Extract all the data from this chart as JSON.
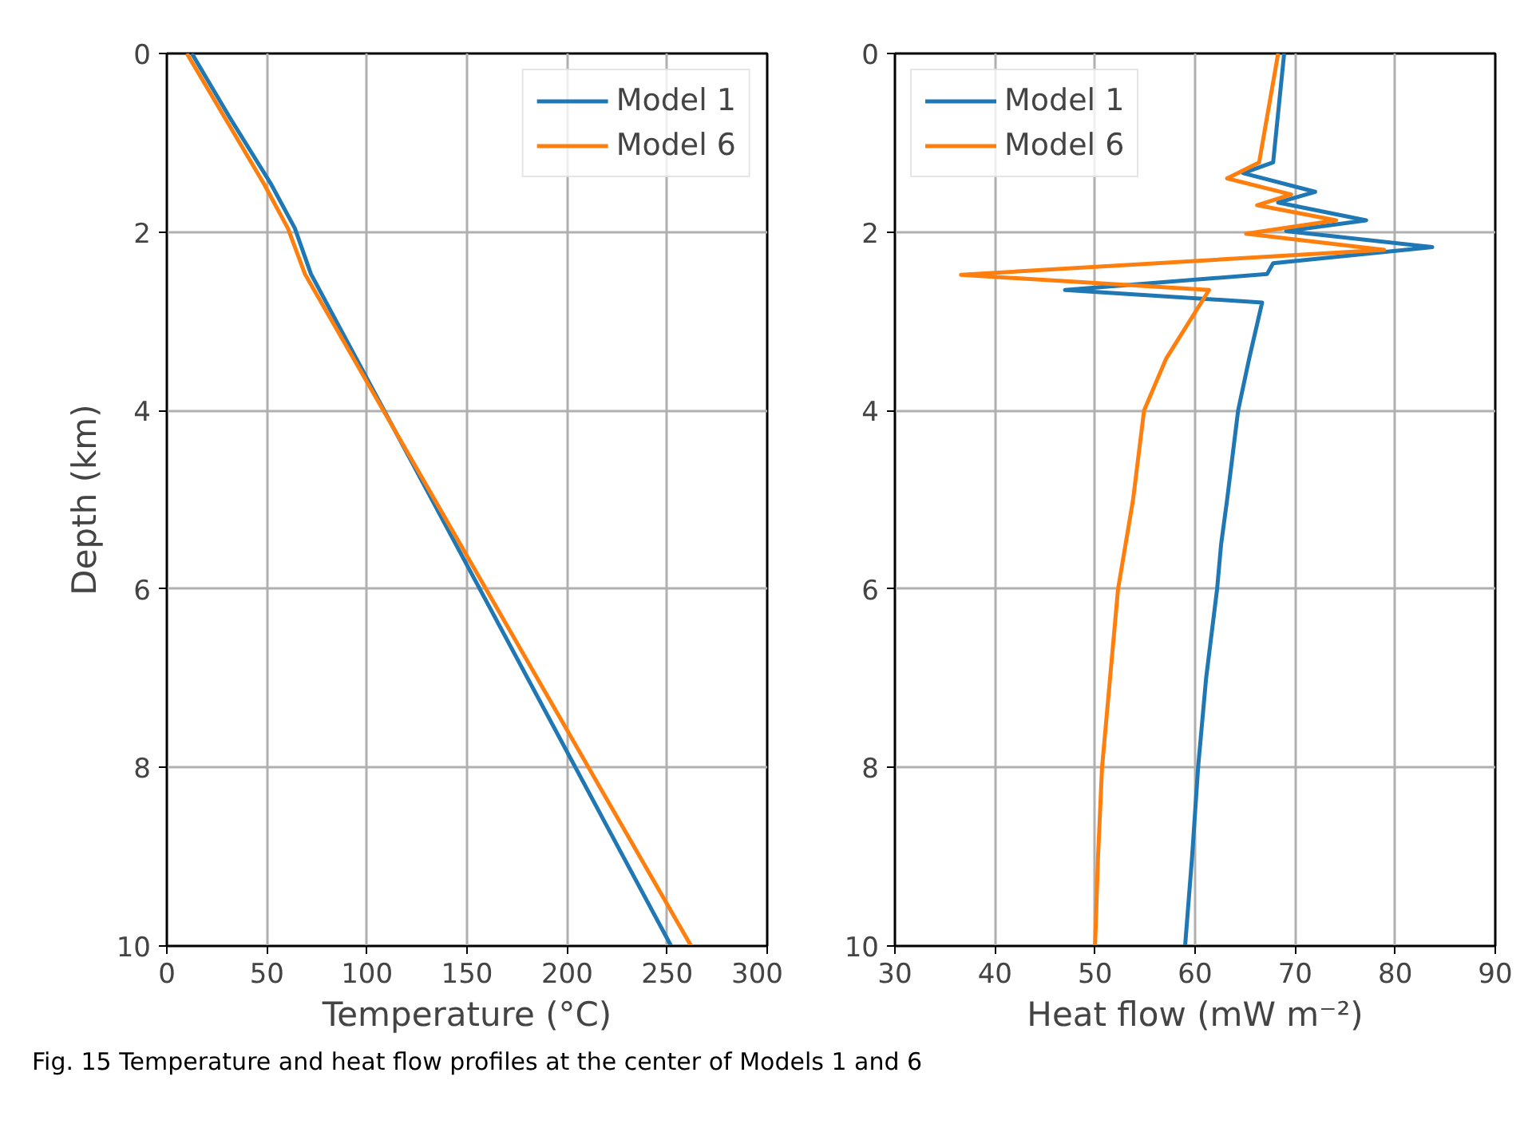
{
  "chart_data": [
    {
      "type": "line",
      "xlabel": "Temperature (°C)",
      "ylabel": "Depth (km)",
      "xlim": [
        0,
        300
      ],
      "ylim": [
        10,
        0
      ],
      "xticks": [
        0,
        50,
        100,
        150,
        200,
        250,
        300
      ],
      "yticks": [
        0,
        2,
        4,
        6,
        8,
        10
      ],
      "grid": true,
      "legend": "top right",
      "line_style": "solid",
      "series": [
        {
          "name": "Model 1",
          "color": "#1f77b4",
          "x": [
            12.5,
            31.5,
            52.0,
            64.0,
            72.0,
            252
          ],
          "values": [
            0,
            0.72,
            1.46,
            1.96,
            2.47,
            10
          ]
        },
        {
          "name": "Model 6",
          "color": "#ff7f0e",
          "x": [
            10.0,
            29.0,
            48.5,
            60.5,
            69.0,
            262
          ],
          "values": [
            0,
            0.72,
            1.46,
            1.96,
            2.47,
            10
          ]
        }
      ],
      "annotations": [
        "Fig. 15  Temperature and heat flow profiles at the center of Models 1 and 6"
      ]
    },
    {
      "type": "line",
      "xlabel": "Heat flow (mW m⁻²)",
      "xlim": [
        30,
        90
      ],
      "ylim": [
        10,
        0
      ],
      "xticks": [
        30,
        40,
        50,
        60,
        70,
        80,
        90
      ],
      "yticks": [
        0,
        2,
        4,
        6,
        8,
        10
      ],
      "grid": true,
      "legend": "top left",
      "line_style": "solid",
      "series": [
        {
          "name": "Model 1",
          "color": "#1f77b4",
          "x": [
            68.9,
            67.8,
            64.8,
            72.0,
            68.3,
            77.1,
            69.1,
            83.7,
            67.8,
            67.2,
            47.0,
            66.7,
            65.4,
            64.3,
            63.2,
            62.6,
            62.2,
            61.1,
            60.3,
            59.7,
            59.0
          ],
          "values": [
            0,
            1.22,
            1.34,
            1.55,
            1.67,
            1.87,
            1.99,
            2.17,
            2.35,
            2.47,
            2.65,
            2.79,
            3.42,
            4,
            5,
            5.5,
            6,
            7,
            8,
            9,
            10
          ]
        },
        {
          "name": "Model 6",
          "color": "#ff7f0e",
          "x": [
            68.3,
            66.4,
            63.2,
            69.6,
            66.2,
            74.1,
            65.1,
            78.9,
            36.6,
            61.4,
            57.1,
            54.9,
            53.8,
            52.3,
            51.5,
            50.7,
            50.3,
            50.0
          ],
          "values": [
            0,
            1.22,
            1.4,
            1.58,
            1.7,
            1.87,
            2.02,
            2.2,
            2.48,
            2.65,
            3.42,
            4,
            5,
            6,
            7,
            8,
            9,
            10
          ]
        }
      ]
    }
  ]
}
